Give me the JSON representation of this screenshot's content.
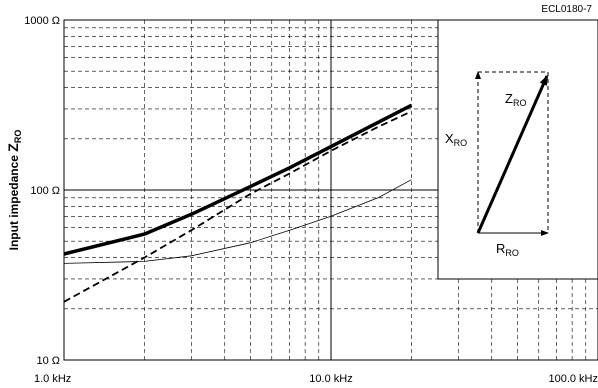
{
  "figure_code": "ECL0180-7",
  "chart_data": {
    "type": "line",
    "ylabel": "Input impedance",
    "ylabel_sub": "RO",
    "x_scale": "log",
    "y_scale": "log",
    "xlim": [
      1000,
      100000
    ],
    "ylim": [
      10,
      1000
    ],
    "grid": true,
    "x_ticks": [
      {
        "value": 1000,
        "label": "1.0 kHz"
      },
      {
        "value": 10000,
        "label": "10.0 kHz"
      },
      {
        "value": 100000,
        "label": "100.0 kHz"
      }
    ],
    "y_ticks": [
      {
        "value": 10,
        "label": "10 Ω"
      },
      {
        "value": 100,
        "label": "100 Ω"
      },
      {
        "value": 1000,
        "label": "1000 Ω"
      }
    ],
    "series": [
      {
        "style": "thick-solid",
        "x": [
          1000,
          2000,
          3000,
          5000,
          7000,
          10000,
          15000,
          20000
        ],
        "y": [
          42,
          55,
          72,
          105,
          135,
          180,
          250,
          315
        ]
      },
      {
        "style": "dashed",
        "x": [
          1000,
          2000,
          3000,
          5000,
          7000,
          10000,
          15000,
          20000
        ],
        "y": [
          22,
          40,
          58,
          95,
          125,
          170,
          235,
          290
        ]
      },
      {
        "style": "thin-solid",
        "x": [
          1000,
          2000,
          3000,
          5000,
          7000,
          10000,
          15000,
          20000
        ],
        "y": [
          37,
          38,
          41,
          49,
          58,
          70,
          90,
          115
        ]
      }
    ]
  },
  "inset": {
    "z_label": "Z",
    "z_sub": "RO",
    "x_label": "X",
    "x_sub": "RO",
    "r_label": "R",
    "r_sub": "RO"
  }
}
